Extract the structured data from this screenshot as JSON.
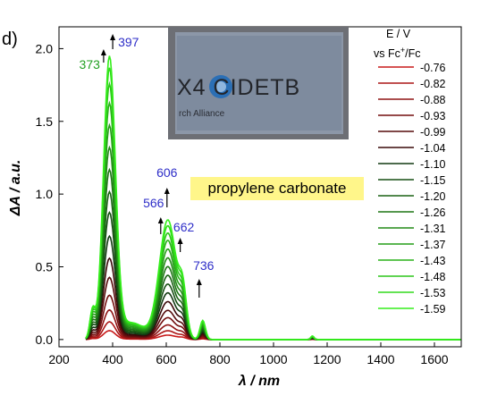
{
  "panel_label": "d)",
  "inset": {
    "text_fragment": "X4 CIDETB",
    "subtext_fragment": "rch Alliance"
  },
  "solvent_label": "propylene carbonate",
  "colors": {
    "neg_start": "#c81a1a",
    "neg_end": "#3a0808",
    "pos_start": "#123a12",
    "pos_end": "#35ee1c",
    "peak_green": "#23a023",
    "peak_blue": "#2e2ec8"
  },
  "chart_data": {
    "type": "line",
    "title": "",
    "xlabel": "λ / nm",
    "ylabel": "ΔA / a.u.",
    "xlim": [
      200,
      1700
    ],
    "ylim": [
      -0.05,
      2.15
    ],
    "xticks": [
      200,
      400,
      600,
      800,
      1000,
      1200,
      1400,
      1600
    ],
    "yticks": [
      0.0,
      0.5,
      1.0,
      1.5,
      2.0
    ],
    "xtick_labels": [
      "200",
      "400",
      "600",
      "800",
      "1000",
      "1200",
      "1400",
      "1600"
    ],
    "ytick_labels": [
      "0.0",
      "0.5",
      "1.0",
      "1.5",
      "2.0"
    ],
    "legend": {
      "title_line1": "E / V",
      "title_line2_prefix": "vs Fc",
      "title_line2_sup": "+",
      "title_line2_suffix": "/Fc",
      "placement": "right"
    },
    "potentials": [
      "-0.76",
      "-0.82",
      "-0.88",
      "-0.93",
      "-0.99",
      "-1.04",
      "-1.10",
      "-1.15",
      "-1.20",
      "-1.26",
      "-1.31",
      "-1.37",
      "-1.43",
      "-1.48",
      "-1.53",
      "-1.59"
    ],
    "peak_heights": {
      "x": [
        385,
        606
      ],
      "p385": [
        0.06,
        0.12,
        0.2,
        0.3,
        0.42,
        0.55,
        0.7,
        0.86,
        1.0,
        1.15,
        1.3,
        1.45,
        1.6,
        1.73,
        1.84,
        1.92
      ],
      "p606": [
        0.03,
        0.06,
        0.1,
        0.15,
        0.2,
        0.26,
        0.32,
        0.38,
        0.44,
        0.5,
        0.56,
        0.62,
        0.68,
        0.73,
        0.78,
        0.82
      ]
    },
    "peak_labels": [
      {
        "text": "373",
        "x": 373,
        "direction": "up",
        "color": "green"
      },
      {
        "text": "397",
        "x": 397,
        "direction": "up",
        "color": "blue"
      },
      {
        "text": "566",
        "x": 566,
        "direction": "up",
        "color": "blue"
      },
      {
        "text": "606",
        "x": 606,
        "direction": "up",
        "color": "blue"
      },
      {
        "text": "662",
        "x": 662,
        "direction": "up",
        "color": "blue"
      },
      {
        "text": "736",
        "x": 736,
        "direction": "up",
        "color": "blue"
      }
    ]
  }
}
